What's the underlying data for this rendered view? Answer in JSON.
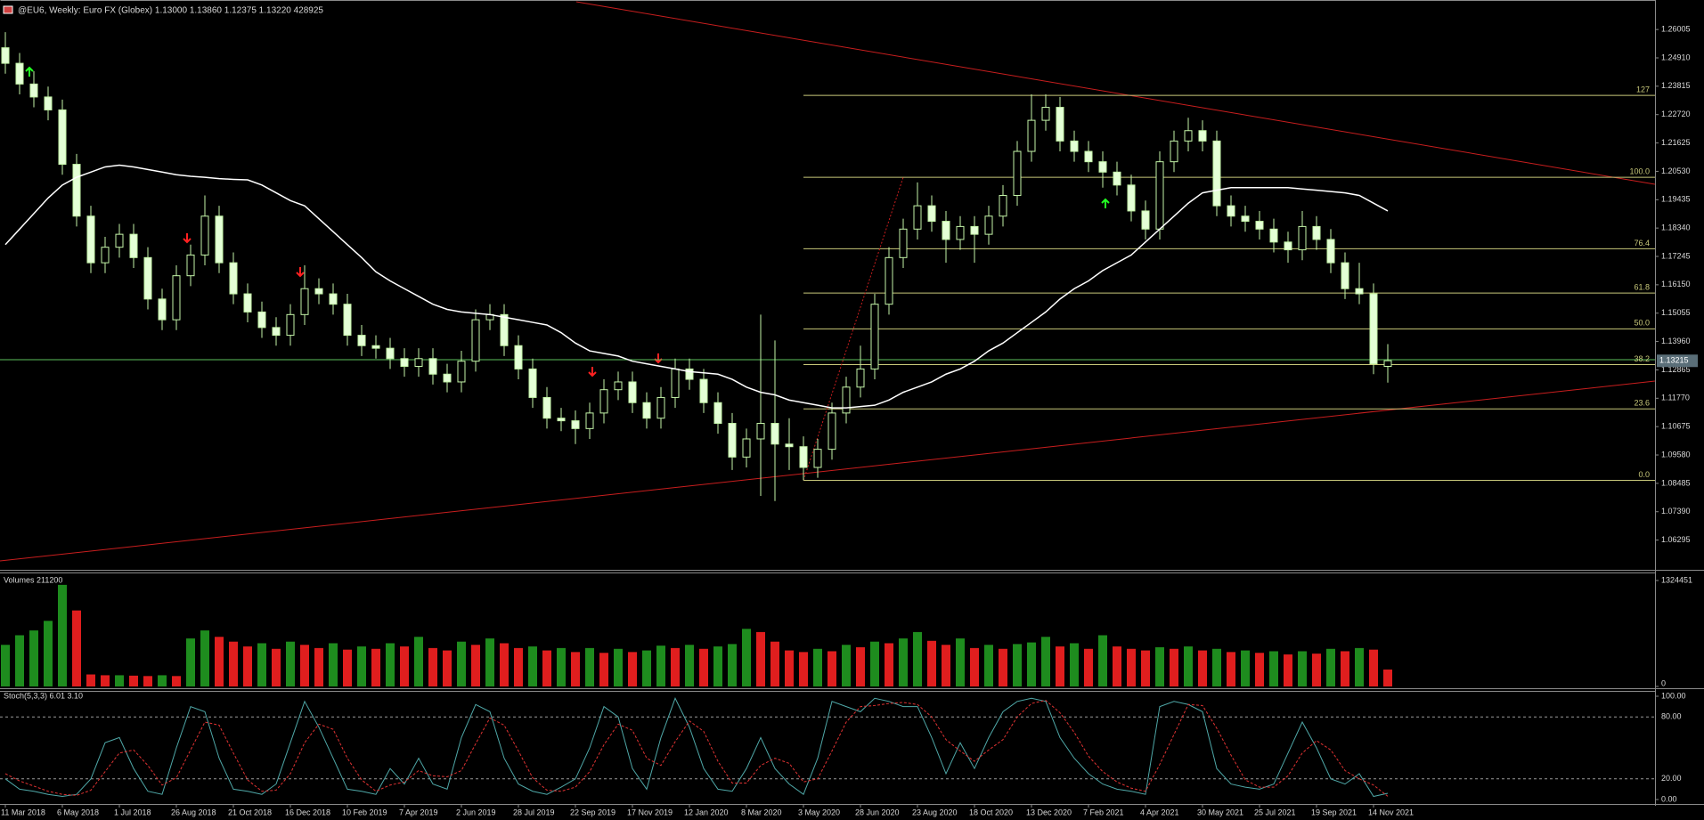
{
  "header": {
    "title": "@EU6, Weekly:  Euro FX (Globex)  1.13000 1.13860 1.12375 1.13220 428925"
  },
  "chart_data": [
    {
      "type": "candlestick",
      "categories": [
        "11 Mar 2018",
        null,
        null,
        null,
        "6 May 2018",
        null,
        null,
        null,
        "1 Jul 2018",
        null,
        null,
        null,
        "26 Aug 2018",
        null,
        null,
        null,
        "21 Oct 2018",
        null,
        null,
        null,
        "16 Dec 2018",
        null,
        null,
        null,
        "10 Feb 2019",
        null,
        null,
        null,
        "7 Apr 2019",
        null,
        null,
        null,
        "2 Jun 2019",
        null,
        null,
        null,
        "28 Jul 2019",
        null,
        null,
        null,
        "22 Sep 2019",
        null,
        null,
        null,
        "17 Nov 2019",
        null,
        null,
        null,
        "12 Jan 2020",
        null,
        null,
        null,
        "8 Mar 2020",
        null,
        null,
        null,
        "3 May 2020",
        null,
        null,
        null,
        "28 Jun 2020",
        null,
        null,
        null,
        "23 Aug 2020",
        null,
        null,
        null,
        "18 Oct 2020",
        null,
        null,
        null,
        "13 Dec 2020",
        null,
        null,
        null,
        "7 Feb 2021",
        null,
        null,
        null,
        "4 Apr 2021",
        null,
        null,
        null,
        "30 May 2021",
        null,
        null,
        null,
        "25 Jul 2021",
        null,
        null,
        null,
        "19 Sep 2021",
        null,
        null,
        null,
        "14 Nov 2021",
        null
      ],
      "open": [
        1.253,
        1.247,
        1.239,
        1.234,
        1.229,
        1.208,
        1.188,
        1.17,
        1.176,
        1.181,
        1.172,
        1.156,
        1.148,
        1.165,
        1.173,
        1.188,
        1.17,
        1.158,
        1.151,
        1.145,
        1.142,
        1.15,
        1.16,
        1.158,
        1.154,
        1.142,
        1.138,
        1.137,
        1.133,
        1.13,
        1.133,
        1.127,
        1.124,
        1.132,
        1.148,
        1.15,
        1.138,
        1.129,
        1.118,
        1.11,
        1.109,
        1.106,
        1.112,
        1.121,
        1.124,
        1.116,
        1.11,
        1.118,
        1.129,
        1.125,
        1.116,
        1.108,
        1.095,
        1.102,
        1.108,
        1.1,
        1.099,
        1.091,
        1.098,
        1.112,
        1.122,
        1.129,
        1.154,
        1.172,
        1.183,
        1.192,
        1.186,
        1.179,
        1.184,
        1.181,
        1.188,
        1.196,
        1.213,
        1.225,
        1.23,
        1.217,
        1.213,
        1.209,
        1.205,
        1.2,
        1.19,
        1.183,
        1.209,
        1.217,
        1.221,
        1.217,
        1.192,
        1.188,
        1.186,
        1.183,
        1.178,
        1.175,
        1.184,
        1.179,
        1.17,
        1.16,
        1.158,
        1.13
      ],
      "high": [
        1.259,
        1.251,
        1.244,
        1.238,
        1.233,
        1.212,
        1.192,
        1.18,
        1.185,
        1.185,
        1.176,
        1.16,
        1.169,
        1.177,
        1.196,
        1.192,
        1.174,
        1.162,
        1.155,
        1.149,
        1.154,
        1.169,
        1.164,
        1.162,
        1.158,
        1.146,
        1.142,
        1.141,
        1.137,
        1.137,
        1.137,
        1.131,
        1.136,
        1.152,
        1.154,
        1.154,
        1.142,
        1.133,
        1.122,
        1.114,
        1.113,
        1.116,
        1.125,
        1.128,
        1.128,
        1.12,
        1.122,
        1.133,
        1.133,
        1.129,
        1.12,
        1.112,
        1.106,
        1.15,
        1.14,
        1.11,
        1.103,
        1.102,
        1.116,
        1.126,
        1.138,
        1.158,
        1.176,
        1.187,
        1.201,
        1.196,
        1.19,
        1.188,
        1.188,
        1.192,
        1.2,
        1.217,
        1.235,
        1.235,
        1.234,
        1.221,
        1.217,
        1.213,
        1.209,
        1.204,
        1.194,
        1.213,
        1.221,
        1.226,
        1.225,
        1.221,
        1.196,
        1.192,
        1.19,
        1.187,
        1.182,
        1.19,
        1.188,
        1.183,
        1.174,
        1.17,
        1.162,
        1.1386
      ],
      "low": [
        1.243,
        1.235,
        1.23,
        1.225,
        1.204,
        1.184,
        1.166,
        1.166,
        1.172,
        1.168,
        1.152,
        1.144,
        1.144,
        1.161,
        1.169,
        1.166,
        1.154,
        1.147,
        1.141,
        1.138,
        1.138,
        1.146,
        1.154,
        1.15,
        1.138,
        1.134,
        1.133,
        1.129,
        1.126,
        1.126,
        1.123,
        1.12,
        1.12,
        1.128,
        1.144,
        1.134,
        1.125,
        1.114,
        1.106,
        1.105,
        1.1,
        1.102,
        1.108,
        1.117,
        1.112,
        1.106,
        1.106,
        1.114,
        1.121,
        1.112,
        1.104,
        1.09,
        1.091,
        1.08,
        1.078,
        1.09,
        1.086,
        1.087,
        1.094,
        1.108,
        1.118,
        1.125,
        1.15,
        1.168,
        1.179,
        1.182,
        1.17,
        1.175,
        1.17,
        1.177,
        1.184,
        1.192,
        1.209,
        1.221,
        1.213,
        1.209,
        1.205,
        1.199,
        1.196,
        1.186,
        1.179,
        1.179,
        1.205,
        1.213,
        1.213,
        1.188,
        1.184,
        1.182,
        1.179,
        1.174,
        1.17,
        1.171,
        1.175,
        1.166,
        1.156,
        1.154,
        1.127,
        1.12375
      ],
      "close": [
        1.247,
        1.239,
        1.234,
        1.229,
        1.208,
        1.188,
        1.17,
        1.176,
        1.181,
        1.172,
        1.156,
        1.148,
        1.165,
        1.173,
        1.188,
        1.17,
        1.158,
        1.151,
        1.145,
        1.142,
        1.15,
        1.16,
        1.158,
        1.154,
        1.142,
        1.138,
        1.137,
        1.133,
        1.13,
        1.133,
        1.127,
        1.124,
        1.132,
        1.148,
        1.15,
        1.138,
        1.129,
        1.118,
        1.11,
        1.109,
        1.106,
        1.112,
        1.121,
        1.124,
        1.116,
        1.11,
        1.118,
        1.129,
        1.125,
        1.116,
        1.108,
        1.095,
        1.102,
        1.108,
        1.1,
        1.099,
        1.091,
        1.098,
        1.112,
        1.122,
        1.129,
        1.154,
        1.172,
        1.183,
        1.192,
        1.186,
        1.179,
        1.184,
        1.181,
        1.188,
        1.196,
        1.213,
        1.225,
        1.23,
        1.217,
        1.213,
        1.209,
        1.205,
        1.2,
        1.19,
        1.183,
        1.209,
        1.217,
        1.221,
        1.217,
        1.192,
        1.188,
        1.186,
        1.183,
        1.178,
        1.175,
        1.184,
        1.179,
        1.17,
        1.16,
        1.158,
        1.131,
        1.1322
      ],
      "up_color": "#000000",
      "down_color": "#e4ffd6",
      "line_color": "#c4f5a8",
      "ylim": [
        1.0525,
        1.268
      ],
      "yticks": [
        1.26005,
        {
          "value": 1.2491,
          "label": "1.24910"
        },
        1.23815,
        {
          "value": 1.2272,
          "label": "1.22720"
        },
        1.21625,
        {
          "value": 1.2053,
          "label": "1.20530"
        },
        1.19435,
        {
          "value": 1.1834,
          "label": "1.18340"
        },
        1.17245,
        {
          "value": 1.1615,
          "label": "1.16150"
        },
        1.15055,
        {
          "value": 1.1396,
          "label": "1.13960"
        },
        1.12865,
        {
          "value": 1.1177,
          "label": "1.11770"
        },
        1.10675,
        {
          "value": 1.0958,
          "label": "1.09580"
        },
        1.08485,
        {
          "value": 1.0739,
          "label": "1.07390"
        },
        1.06295
      ],
      "last_price": 1.13215,
      "level": 1.1326,
      "level_color": "#5cbf5c",
      "moving_average": {
        "color": "#ffffff",
        "values": [
          1.177,
          1.183,
          1.189,
          1.195,
          1.2,
          1.203,
          1.205,
          1.207,
          1.2077,
          1.207,
          1.206,
          1.205,
          1.204,
          1.2034,
          1.203,
          1.2025,
          1.2022,
          1.202,
          1.2,
          1.197,
          1.194,
          1.192,
          1.187,
          1.182,
          1.177,
          1.172,
          1.1665,
          1.163,
          1.16,
          1.157,
          1.154,
          1.152,
          1.151,
          1.1505,
          1.15,
          1.149,
          1.148,
          1.147,
          1.146,
          1.143,
          1.139,
          1.136,
          1.135,
          1.134,
          1.132,
          1.131,
          1.13,
          1.129,
          1.128,
          1.1275,
          1.127,
          1.125,
          1.122,
          1.12,
          1.119,
          1.117,
          1.116,
          1.115,
          1.114,
          1.114,
          1.1145,
          1.115,
          1.117,
          1.12,
          1.122,
          1.124,
          1.127,
          1.129,
          1.132,
          1.136,
          1.139,
          1.143,
          1.147,
          1.151,
          1.156,
          1.16,
          1.163,
          1.167,
          1.17,
          1.173,
          1.178,
          1.183,
          1.188,
          1.193,
          1.197,
          1.198,
          1.199,
          1.199,
          1.199,
          1.199,
          1.199,
          1.1985,
          1.198,
          1.1975,
          1.197,
          1.196,
          1.193,
          1.19
        ]
      },
      "fibonacci": {
        "color": "#c8c87a",
        "levels": [
          {
            "value": 0,
            "label": "0.0"
          },
          23.6,
          38.2,
          {
            "value": 50,
            "label": "50.0"
          },
          61.8,
          76.4,
          {
            "value": 100,
            "label": "100.0"
          },
          127
        ],
        "prices": [
          1.086,
          1.1136,
          1.1307,
          1.1445,
          1.1583,
          1.1754,
          1.203,
          1.2346
        ]
      },
      "trendline_color": "#c81e1e"
    },
    {
      "type": "bar",
      "title": "Volumes 211200",
      "values": [
        520000,
        640000,
        700000,
        820000,
        1270000,
        950000,
        150000,
        140000,
        140000,
        135000,
        130000,
        140000,
        130000,
        600000,
        700000,
        620000,
        560000,
        500000,
        540000,
        470000,
        560000,
        520000,
        480000,
        540000,
        460000,
        500000,
        470000,
        540000,
        500000,
        620000,
        480000,
        450000,
        560000,
        520000,
        600000,
        540000,
        480000,
        500000,
        450000,
        480000,
        430000,
        480000,
        420000,
        470000,
        430000,
        450000,
        510000,
        480000,
        520000,
        470000,
        500000,
        530000,
        720000,
        680000,
        560000,
        450000,
        430000,
        470000,
        440000,
        520000,
        490000,
        560000,
        540000,
        600000,
        680000,
        570000,
        520000,
        600000,
        480000,
        520000,
        470000,
        530000,
        550000,
        620000,
        500000,
        540000,
        470000,
        640000,
        500000,
        470000,
        450000,
        490000,
        470000,
        500000,
        450000,
        470000,
        430000,
        450000,
        420000,
        440000,
        400000,
        440000,
        410000,
        470000,
        440000,
        480000,
        460000,
        211200
      ],
      "up_color": "#1e8c1e",
      "down_color": "#e01e1e",
      "ylim": [
        0,
        1324451
      ],
      "yticks": [
        1324451,
        0
      ]
    },
    {
      "type": "line",
      "title": "Stoch(5,3,3) 6.01 3.10",
      "series": [
        {
          "color": "#4fa8a8",
          "values": [
            20,
            10,
            8,
            5,
            3,
            5,
            20,
            55,
            60,
            30,
            8,
            5,
            50,
            90,
            85,
            40,
            10,
            8,
            5,
            15,
            55,
            95,
            70,
            40,
            10,
            8,
            5,
            30,
            15,
            40,
            15,
            10,
            60,
            92,
            85,
            40,
            15,
            8,
            5,
            12,
            20,
            50,
            90,
            80,
            30,
            10,
            60,
            98,
            70,
            30,
            10,
            8,
            30,
            60,
            30,
            15,
            5,
            40,
            95,
            90,
            85,
            98,
            95,
            90,
            90,
            60,
            25,
            55,
            30,
            60,
            85,
            95,
            98,
            95,
            60,
            40,
            25,
            15,
            10,
            8,
            5,
            90,
            95,
            92,
            85,
            30,
            15,
            12,
            10,
            15,
            45,
            75,
            50,
            20,
            15,
            25,
            3,
            6.01
          ]
        },
        {
          "color": "#e03232",
          "dashed": true,
          "values": [
            25,
            18,
            13,
            8,
            5,
            4,
            9,
            27,
            45,
            48,
            33,
            14,
            21,
            48,
            75,
            72,
            45,
            19,
            8,
            9,
            25,
            55,
            73,
            68,
            40,
            19,
            8,
            14,
            17,
            28,
            23,
            22,
            28,
            54,
            79,
            72,
            47,
            21,
            9,
            8,
            12,
            27,
            53,
            73,
            67,
            40,
            33,
            56,
            76,
            66,
            37,
            16,
            16,
            33,
            40,
            35,
            17,
            20,
            47,
            75,
            90,
            91,
            93,
            94,
            92,
            80,
            58,
            47,
            37,
            48,
            58,
            80,
            93,
            96,
            84,
            65,
            42,
            27,
            17,
            11,
            8,
            34,
            63,
            92,
            91,
            69,
            43,
            19,
            12,
            12,
            23,
            45,
            57,
            48,
            28,
            20,
            14,
            3.1
          ]
        }
      ],
      "ylim": [
        0,
        100
      ],
      "yticks": [
        {
          "value": 100,
          "label": "100.00"
        },
        {
          "value": 80,
          "label": "80.00"
        },
        {
          "value": 20,
          "label": "20.00"
        },
        {
          "value": 0,
          "label": "0.00"
        }
      ]
    }
  ]
}
